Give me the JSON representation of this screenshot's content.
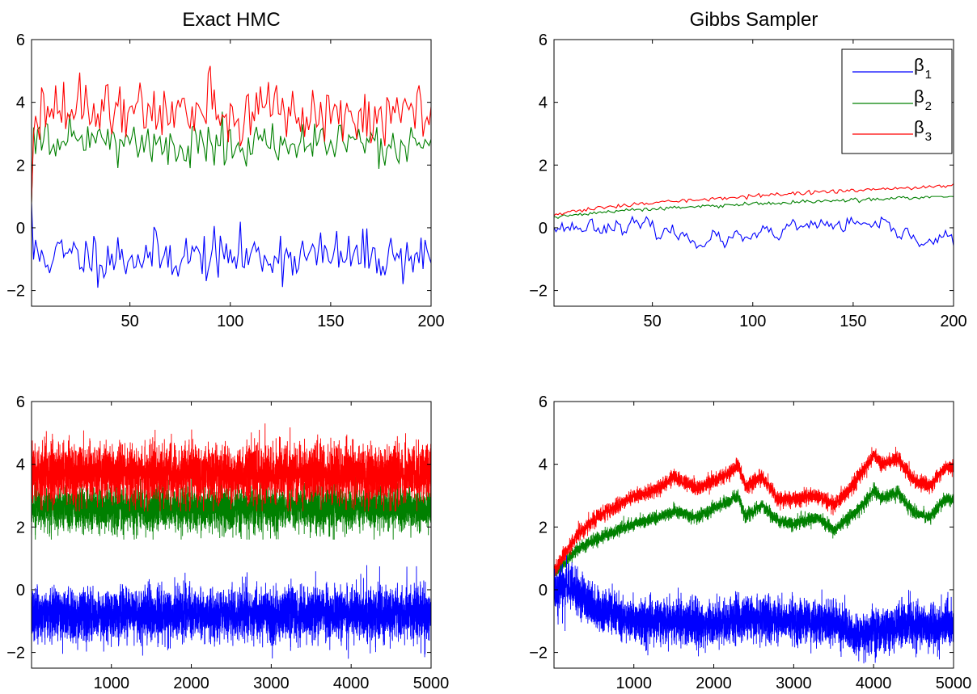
{
  "colors": {
    "beta1": "#0000ff",
    "beta2": "#008000",
    "beta3": "#ff0000"
  },
  "legend": {
    "location": "top-right of top-right panel",
    "entries": [
      {
        "symbol": "β",
        "sub": "1"
      },
      {
        "symbol": "β",
        "sub": "2"
      },
      {
        "symbol": "β",
        "sub": "3"
      }
    ]
  },
  "chart_data": [
    {
      "type": "line",
      "title": "Exact HMC",
      "xlabel": "",
      "ylabel": "",
      "xlim": [
        1,
        200
      ],
      "ylim": [
        -2.5,
        6
      ],
      "xticks": [
        50,
        100,
        150,
        200
      ],
      "yticks": [
        -2,
        0,
        2,
        4,
        6
      ],
      "ytick_labels": [
        "−2",
        "0",
        "2",
        "4",
        "6"
      ],
      "series": [
        {
          "name": "β1",
          "color": "#0000ff",
          "start": 0.8,
          "mean": -0.9,
          "sd": 0.4,
          "min": -1.95,
          "max": 0.25
        },
        {
          "name": "β2",
          "color": "#008000",
          "start": 0.8,
          "mean": 2.7,
          "sd": 0.35,
          "min": 1.75,
          "max": 3.7
        },
        {
          "name": "β3",
          "color": "#ff0000",
          "start": 0.8,
          "mean": 3.7,
          "sd": 0.45,
          "min": 2.6,
          "max": 5.3
        }
      ],
      "grid": false,
      "legend": false
    },
    {
      "type": "line",
      "title": "Gibbs Sampler",
      "xlabel": "",
      "ylabel": "",
      "xlim": [
        1,
        200
      ],
      "ylim": [
        -2.5,
        6
      ],
      "xticks": [
        50,
        100,
        150,
        200
      ],
      "yticks": [
        -2,
        0,
        2,
        4,
        6
      ],
      "ytick_labels": [
        "−2",
        "0",
        "2",
        "4",
        "6"
      ],
      "series": [
        {
          "name": "β1",
          "color": "#0000ff",
          "start": 0.0,
          "end": -0.1,
          "mean": -0.15,
          "min": -0.65,
          "max": 0.35
        },
        {
          "name": "β2",
          "color": "#008000",
          "start": 0.3,
          "end": 1.0,
          "min": 0.3,
          "max": 1.0
        },
        {
          "name": "β3",
          "color": "#ff0000",
          "start": 0.35,
          "end": 1.35,
          "min": 0.35,
          "max": 1.4
        }
      ],
      "grid": false,
      "legend": true
    },
    {
      "type": "line",
      "title": "",
      "xlabel": "",
      "ylabel": "",
      "xlim": [
        1,
        5000
      ],
      "ylim": [
        -2.5,
        6
      ],
      "xticks": [
        1000,
        2000,
        3000,
        4000,
        5000
      ],
      "yticks": [
        -2,
        0,
        2,
        4,
        6
      ],
      "ytick_labels": [
        "−2",
        "0",
        "2",
        "4",
        "6"
      ],
      "series": [
        {
          "name": "β1",
          "color": "#0000ff",
          "mean": -0.8,
          "sd": 0.4,
          "min": -2.2,
          "max": 0.85
        },
        {
          "name": "β2",
          "color": "#008000",
          "mean": 2.6,
          "sd": 0.35,
          "min": 1.6,
          "max": 3.6
        },
        {
          "name": "β3",
          "color": "#ff0000",
          "mean": 3.7,
          "sd": 0.45,
          "min": 2.5,
          "max": 5.3
        }
      ],
      "grid": false,
      "legend": false
    },
    {
      "type": "line",
      "title": "",
      "xlabel": "",
      "ylabel": "",
      "xlim": [
        1,
        5000
      ],
      "ylim": [
        -2.5,
        6
      ],
      "xticks": [
        1000,
        2000,
        3000,
        4000,
        5000
      ],
      "yticks": [
        -2,
        0,
        2,
        4,
        6
      ],
      "ytick_labels": [
        "−2",
        "0",
        "2",
        "4",
        "6"
      ],
      "series": [
        {
          "name": "β2",
          "color": "#008000",
          "x": [
            1,
            300,
            600,
            1000,
            1300,
            1500,
            1800,
            2000,
            2200,
            2300,
            2400,
            2600,
            2800,
            3000,
            3300,
            3500,
            3700,
            3900,
            4000,
            4100,
            4300,
            4500,
            4700,
            4900,
            5000
          ],
          "y": [
            0.5,
            1.3,
            1.7,
            2.1,
            2.3,
            2.5,
            2.3,
            2.6,
            2.8,
            3.0,
            2.3,
            2.7,
            2.2,
            2.1,
            2.3,
            1.9,
            2.3,
            2.8,
            3.2,
            2.9,
            3.1,
            2.5,
            2.3,
            2.9,
            2.85
          ]
        },
        {
          "name": "β3",
          "color": "#ff0000",
          "x": [
            1,
            300,
            600,
            1000,
            1300,
            1500,
            1800,
            2000,
            2200,
            2300,
            2400,
            2600,
            2800,
            3000,
            3300,
            3500,
            3700,
            3900,
            4000,
            4100,
            4300,
            4500,
            4700,
            4900,
            5000
          ],
          "y": [
            0.6,
            1.8,
            2.4,
            3.0,
            3.2,
            3.6,
            3.2,
            3.5,
            3.7,
            4.0,
            3.3,
            3.6,
            2.9,
            2.9,
            3.0,
            2.7,
            3.2,
            3.9,
            4.3,
            4.0,
            4.2,
            3.5,
            3.3,
            3.9,
            3.9
          ]
        },
        {
          "name": "β1",
          "color": "#0000ff",
          "x": [
            1,
            100,
            250,
            500,
            1000,
            1500,
            2000,
            2500,
            3000,
            3500,
            3800,
            4000,
            4500,
            4800,
            5000
          ],
          "y": [
            -0.2,
            0.1,
            0.05,
            -0.6,
            -1.0,
            -1.0,
            -1.1,
            -0.9,
            -1.0,
            -1.0,
            -1.5,
            -1.3,
            -1.1,
            -1.2,
            -1.1
          ]
        }
      ],
      "noise_sd": {
        "β1": 0.35,
        "β2": 0.1,
        "β3": 0.12
      },
      "grid": false,
      "legend": false
    }
  ]
}
